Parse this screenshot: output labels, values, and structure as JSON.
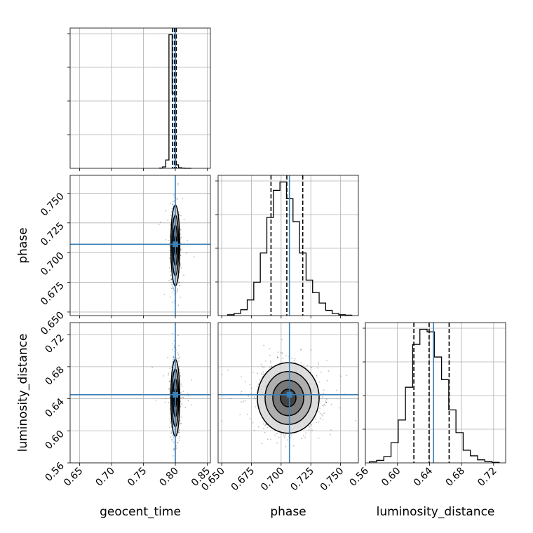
{
  "chart_data": {
    "type": "corner",
    "parameters": [
      "geocent_time",
      "phase",
      "luminosity_distance"
    ],
    "truths": {
      "geocent_time": 0.8,
      "phase": 0.707,
      "luminosity_distance": 0.645
    },
    "truth_color": "#3b7fb5",
    "ranges": {
      "geocent_time": [
        0.635,
        0.855
      ],
      "phase": [
        0.647,
        0.765
      ],
      "luminosity_distance": [
        0.56,
        0.735
      ]
    },
    "ticks": {
      "geocent_time": {
        "values": [
          0.65,
          0.7,
          0.75,
          0.8,
          0.85
        ],
        "labels": [
          "0.65",
          "0.70",
          "0.75",
          "0.80",
          "0.85"
        ]
      },
      "phase": {
        "values": [
          0.65,
          0.675,
          0.7,
          0.725,
          0.75
        ],
        "labels": [
          "0.650",
          "0.675",
          "0.700",
          "0.725",
          "0.750"
        ]
      },
      "luminosity_distance": {
        "values": [
          0.56,
          0.6,
          0.64,
          0.68,
          0.72
        ],
        "labels": [
          "0.56",
          "0.60",
          "0.64",
          "0.68",
          "0.72"
        ]
      }
    },
    "histograms": {
      "geocent_time": {
        "bins": [
          0.775,
          0.78,
          0.785,
          0.79,
          0.795,
          0.8,
          0.805,
          0.81,
          0.815,
          0.82,
          0.825
        ],
        "counts": [
          2,
          10,
          60,
          960,
          540,
          25,
          4,
          1,
          0,
          0
        ],
        "quantiles": [
          0.7955,
          0.7985,
          0.8015
        ]
      },
      "phase": {
        "bins": [
          0.655,
          0.6605,
          0.666,
          0.6715,
          0.677,
          0.6825,
          0.688,
          0.6935,
          0.699,
          0.7045,
          0.71,
          0.7155,
          0.721,
          0.7265,
          0.732,
          0.7375,
          0.743,
          0.7485,
          0.754,
          0.7595
        ],
        "counts": [
          4,
          10,
          28,
          75,
          160,
          300,
          470,
          600,
          640,
          560,
          450,
          300,
          170,
          110,
          60,
          25,
          10,
          4,
          2
        ],
        "quantiles": [
          0.6915,
          0.7048,
          0.7182
        ]
      },
      "luminosity_distance": {
        "bins": [
          0.565,
          0.574,
          0.583,
          0.592,
          0.601,
          0.61,
          0.619,
          0.628,
          0.637,
          0.646,
          0.655,
          0.664,
          0.673,
          0.682,
          0.691,
          0.7,
          0.709,
          0.718,
          0.727
        ],
        "counts": [
          4,
          10,
          25,
          80,
          170,
          300,
          470,
          530,
          520,
          420,
          330,
          210,
          120,
          50,
          28,
          12,
          5,
          2
        ],
        "quantiles": [
          0.6205,
          0.6395,
          0.6645
        ]
      }
    },
    "pairs": [
      {
        "x": "geocent_time",
        "y": "phase",
        "center": [
          0.8,
          0.706
        ],
        "sigma": [
          0.0035,
          0.017
        ]
      },
      {
        "x": "geocent_time",
        "y": "luminosity_distance",
        "center": [
          0.8,
          0.641
        ],
        "sigma": [
          0.0035,
          0.024
        ]
      },
      {
        "x": "phase",
        "y": "luminosity_distance",
        "center": [
          0.706,
          0.641
        ],
        "sigma": [
          0.013,
          0.022
        ]
      }
    ],
    "contour_levels": [
      0.5,
      1.0,
      1.5,
      2.0
    ],
    "grid": true,
    "line_style": {
      "histogram": "solid black",
      "quantiles": "dashed black"
    }
  }
}
